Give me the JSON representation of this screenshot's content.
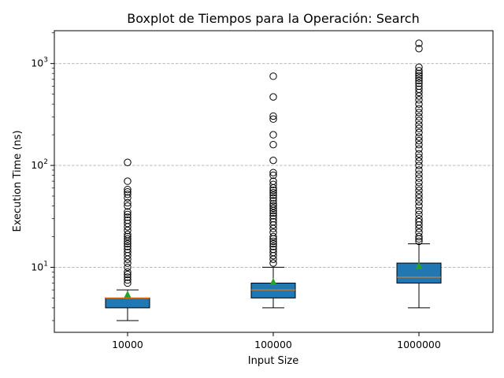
{
  "chart_data": {
    "type": "boxplot",
    "title": "Boxplot de Tiempos para la Operación: Search",
    "xlabel": "Input Size",
    "ylabel": "Execution Time (ns)",
    "yscale": "log",
    "ylim": [
      2.3,
      2100
    ],
    "grid": "y-major-dashed",
    "categories": [
      "10000",
      "100000",
      "1000000"
    ],
    "y_ticks": [
      {
        "value": 10,
        "base": "10",
        "exp": "1"
      },
      {
        "value": 100,
        "base": "10",
        "exp": "2"
      },
      {
        "value": 1000,
        "base": "10",
        "exp": "3"
      }
    ],
    "box_color": "#1f77b4",
    "median_color": "#ff7f0e",
    "mean_color": "#2ca02c",
    "boxes": [
      {
        "category": "10000",
        "whisker_low": 3,
        "q1": 4,
        "median": 5,
        "q3": 5,
        "whisker_high": 6,
        "mean": 5.4,
        "outliers": [
          7,
          7.5,
          8,
          8.5,
          9,
          10,
          11,
          12,
          13,
          14,
          15,
          16,
          17,
          18,
          19,
          20,
          21,
          23,
          25,
          27,
          29,
          31,
          33,
          35,
          40,
          43,
          48,
          52,
          55,
          58,
          70,
          107
        ]
      },
      {
        "category": "100000",
        "whisker_low": 4,
        "q1": 5,
        "median": 6,
        "q3": 7,
        "whisker_high": 10,
        "mean": 7.2,
        "outliers": [
          11,
          12,
          13,
          14,
          15,
          16,
          17,
          18,
          19,
          20,
          22,
          24,
          26,
          28,
          30,
          32,
          34,
          36,
          38,
          40,
          42,
          45,
          48,
          51,
          54,
          57,
          60,
          65,
          70,
          80,
          85,
          112,
          160,
          200,
          285,
          305,
          470,
          750
        ]
      },
      {
        "category": "1000000",
        "whisker_low": 4,
        "q1": 7,
        "median": 8,
        "q3": 11,
        "whisker_high": 17,
        "mean": 10.3,
        "outliers": [
          18,
          19,
          20,
          22,
          24,
          26,
          28,
          30,
          33,
          36,
          40,
          44,
          48,
          52,
          57,
          62,
          68,
          75,
          82,
          90,
          100,
          110,
          120,
          130,
          145,
          160,
          175,
          190,
          210,
          230,
          250,
          275,
          300,
          330,
          360,
          400,
          440,
          480,
          520,
          560,
          600,
          640,
          680,
          720,
          760,
          800,
          850,
          920,
          1400,
          1580
        ]
      }
    ]
  }
}
